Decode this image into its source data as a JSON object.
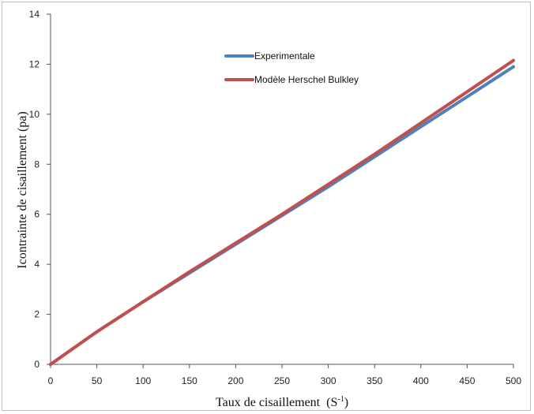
{
  "chart_data": {
    "type": "line",
    "xlabel": "Taux de cisaillement",
    "xlabel_unit_base": "S",
    "xlabel_unit_exp": "-1",
    "ylabel": "Icontrainte de cisaillement (pa)",
    "xlim": [
      0,
      500
    ],
    "ylim": [
      0,
      14
    ],
    "x_ticks": [
      0,
      50,
      100,
      150,
      200,
      250,
      300,
      350,
      400,
      450,
      500
    ],
    "y_ticks": [
      0,
      2,
      4,
      6,
      8,
      10,
      12,
      14
    ],
    "grid": false,
    "legend_position": "top-center",
    "series": [
      {
        "name": "Experimentale",
        "color": "#4f81bd",
        "x": [
          0,
          50,
          100,
          150,
          200,
          250,
          300,
          350,
          400,
          450,
          500
        ],
        "y": [
          0,
          1.3,
          2.5,
          3.65,
          4.8,
          5.95,
          7.1,
          8.3,
          9.5,
          10.7,
          11.9
        ]
      },
      {
        "name": "Modèle Herschel Bulkley",
        "color": "#c0504d",
        "x": [
          0,
          50,
          100,
          150,
          200,
          250,
          300,
          350,
          400,
          450,
          500
        ],
        "y": [
          0,
          1.3,
          2.5,
          3.7,
          4.85,
          6.0,
          7.2,
          8.4,
          9.65,
          10.9,
          12.15
        ]
      }
    ]
  }
}
